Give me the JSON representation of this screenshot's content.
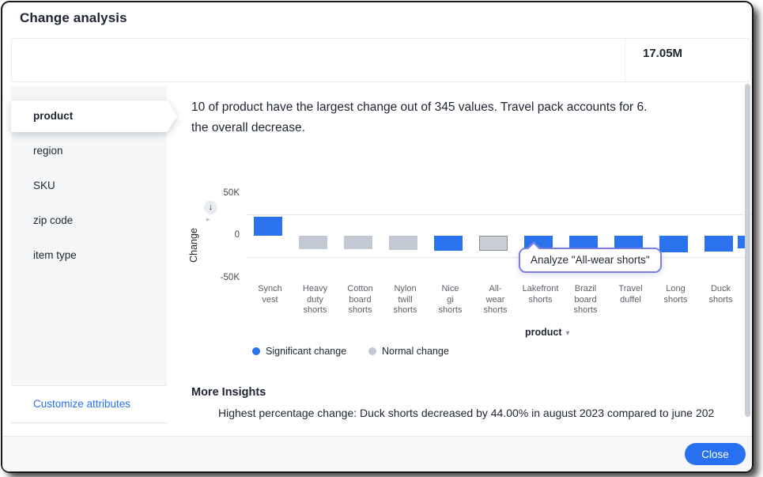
{
  "dialog": {
    "title": "Change analysis",
    "header": {
      "metric_value": "17.05M"
    },
    "sidebar": {
      "items": [
        {
          "label": "product",
          "selected": true
        },
        {
          "label": "region",
          "selected": false
        },
        {
          "label": "SKU",
          "selected": false
        },
        {
          "label": "zip code",
          "selected": false
        },
        {
          "label": "item type",
          "selected": false
        }
      ],
      "customize_link": "Customize attributes"
    },
    "summary": {
      "line1": "10 of product have the largest change out of 345 values. Travel pack accounts for 6.",
      "line2": "the overall decrease."
    },
    "insights": {
      "heading": "More Insights",
      "bullets": [
        "Highest percentage change: Duck shorts decreased by 44.00% in august 2023 compared to june 202"
      ]
    },
    "footer": {
      "close_label": "Close"
    },
    "icons": {
      "y_axis_sort_icon": "↓",
      "panel_chevron_icon": "▸",
      "dropdown_chevron_icon": "▾"
    },
    "colors": {
      "accent_blue": "#2770ef",
      "significant_change": "#2b72ee",
      "normal_change": "#c2c9d3",
      "text_dark": "#1d2532",
      "tooltip_border": "#7b7de4"
    }
  },
  "chart_data": {
    "type": "bar",
    "title": "",
    "xlabel": "product",
    "ylabel": "Change",
    "ylim": [
      -50000,
      50000
    ],
    "grid": "minor-only",
    "legend_position": "bottom-left",
    "yticks": [
      {
        "label": "50K",
        "value": 50000
      },
      {
        "label": "0",
        "value": 0
      },
      {
        "label": "-50K",
        "value": -50000
      }
    ],
    "minor_gridlines": [
      25000,
      -25000
    ],
    "categories": [
      "Synch vest",
      "Heavy duty shorts",
      "Cotton board shorts",
      "Nylon twill shorts",
      "Nice gi shorts",
      "All-wear shorts",
      "Lakefront shorts",
      "Brazil board shorts",
      "Travel duffel",
      "Long shorts",
      "Duck shorts"
    ],
    "series": [
      {
        "name": "Change",
        "values": [
          22000,
          -16000,
          -16000,
          -17000,
          -18000,
          -18000,
          -15000,
          -15000,
          -16000,
          -20000,
          -19000
        ]
      }
    ],
    "bars": [
      {
        "label": "Synch vest",
        "lines": [
          "Synch",
          "vest"
        ],
        "value": 22000,
        "significant": true,
        "hovered": false
      },
      {
        "label": "Heavy duty shorts",
        "lines": [
          "Heavy",
          "duty",
          "shorts"
        ],
        "value": -16000,
        "significant": false,
        "hovered": false
      },
      {
        "label": "Cotton board shorts",
        "lines": [
          "Cotton",
          "board",
          "shorts"
        ],
        "value": -16000,
        "significant": false,
        "hovered": false
      },
      {
        "label": "Nylon twill shorts",
        "lines": [
          "Nylon",
          "twill",
          "shorts"
        ],
        "value": -17000,
        "significant": false,
        "hovered": false
      },
      {
        "label": "Nice gi shorts",
        "lines": [
          "Nice",
          "gi",
          "shorts"
        ],
        "value": -18000,
        "significant": true,
        "hovered": false
      },
      {
        "label": "All-wear shorts",
        "lines": [
          "All-",
          "wear",
          "shorts"
        ],
        "value": -18000,
        "significant": false,
        "hovered": true
      },
      {
        "label": "Lakefront shorts",
        "lines": [
          "Lakefront",
          "shorts"
        ],
        "value": -15000,
        "significant": true,
        "hovered": false
      },
      {
        "label": "Brazil board shorts",
        "lines": [
          "Brazil",
          "board",
          "shorts"
        ],
        "value": -15000,
        "significant": true,
        "hovered": false
      },
      {
        "label": "Travel duffel",
        "lines": [
          "Travel",
          "duffel"
        ],
        "value": -16000,
        "significant": true,
        "hovered": false
      },
      {
        "label": "Long shorts",
        "lines": [
          "Long",
          "shorts"
        ],
        "value": -20000,
        "significant": true,
        "hovered": false
      },
      {
        "label": "Duck shorts",
        "lines": [
          "Duck",
          "shorts"
        ],
        "value": -19000,
        "significant": true,
        "hovered": false
      }
    ],
    "partial_bar": {
      "value": -15000,
      "significant": true
    },
    "legend": [
      {
        "label": "Significant change",
        "color": "#2b72ee"
      },
      {
        "label": "Normal change",
        "color": "#c2c9d3"
      }
    ],
    "tooltip": {
      "text": "Analyze \"All-wear shorts\"",
      "target": "All-wear shorts"
    }
  }
}
